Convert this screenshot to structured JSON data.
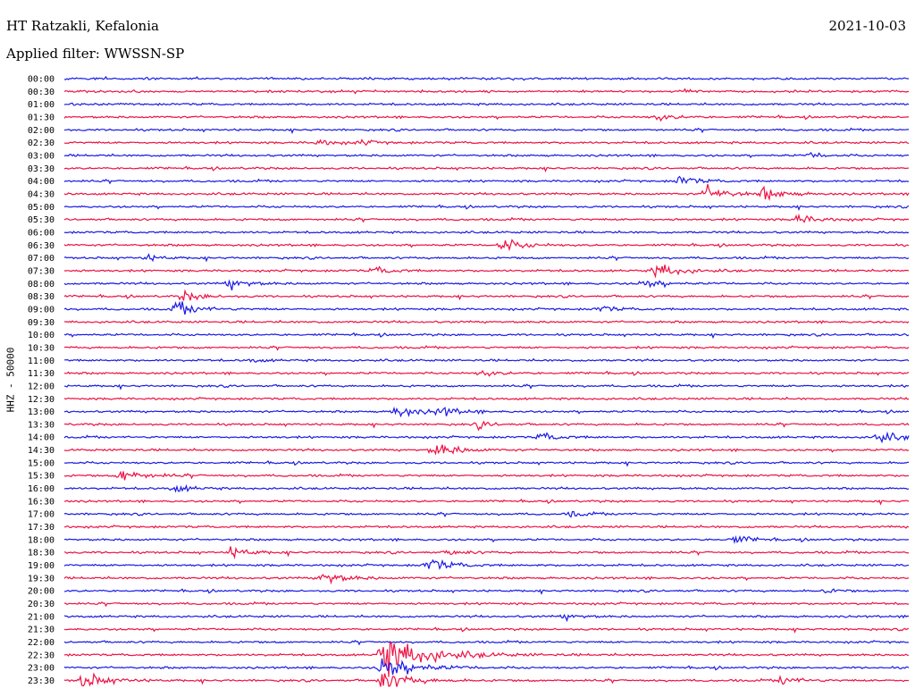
{
  "header": {
    "station": "HT Ratzakli, Kefalonia",
    "date": "2021-10-03",
    "filter": "Applied filter: WWSSN-SP"
  },
  "chart_data": {
    "type": "line",
    "ylabel": "HHZ - 50000",
    "tick_labels": [
      "00:00",
      "00:30",
      "01:00",
      "01:30",
      "02:00",
      "02:30",
      "03:00",
      "03:30",
      "04:00",
      "04:30",
      "05:00",
      "05:30",
      "06:00",
      "06:30",
      "07:00",
      "07:30",
      "08:00",
      "08:30",
      "09:00",
      "09:30",
      "10:00",
      "10:30",
      "11:00",
      "11:30",
      "12:00",
      "12:30",
      "13:00",
      "13:30",
      "14:00",
      "14:30",
      "15:00",
      "15:30",
      "16:00",
      "16:30",
      "17:00",
      "17:30",
      "18:00",
      "18:30",
      "19:00",
      "19:30",
      "20:00",
      "20:30",
      "21:00",
      "21:30",
      "22:00",
      "22:30",
      "23:00",
      "23:30"
    ],
    "trace_colors": [
      "#1a1ae6",
      "#ee1144"
    ],
    "x_range_minutes": [
      0,
      30
    ],
    "grid": false,
    "events": [
      {
        "row": 1,
        "minute": 22.0,
        "amp": 0.35
      },
      {
        "row": 3,
        "minute": 21.0,
        "amp": 0.8
      },
      {
        "row": 5,
        "minute": 9.0,
        "amp": 0.6
      },
      {
        "row": 5,
        "minute": 10.5,
        "amp": 0.5
      },
      {
        "row": 6,
        "minute": 26.5,
        "amp": 0.5
      },
      {
        "row": 8,
        "minute": 21.8,
        "amp": 0.9
      },
      {
        "row": 9,
        "minute": 22.8,
        "amp": 1.4
      },
      {
        "row": 9,
        "minute": 24.8,
        "amp": 1.2
      },
      {
        "row": 11,
        "minute": 26.0,
        "amp": 1.0
      },
      {
        "row": 13,
        "minute": 15.5,
        "amp": 1.3
      },
      {
        "row": 14,
        "minute": 2.9,
        "amp": 0.6
      },
      {
        "row": 15,
        "minute": 11.0,
        "amp": 0.7
      },
      {
        "row": 15,
        "minute": 21.0,
        "amp": 1.5
      },
      {
        "row": 16,
        "minute": 5.8,
        "amp": 1.1
      },
      {
        "row": 16,
        "minute": 20.5,
        "amp": 1.0
      },
      {
        "row": 17,
        "minute": 4.2,
        "amp": 1.0
      },
      {
        "row": 18,
        "minute": 3.9,
        "amp": 1.4
      },
      {
        "row": 18,
        "minute": 19.0,
        "amp": 0.6
      },
      {
        "row": 22,
        "minute": 6.6,
        "amp": 0.35
      },
      {
        "row": 23,
        "minute": 14.8,
        "amp": 0.7
      },
      {
        "row": 26,
        "minute": 11.7,
        "amp": 1.2
      },
      {
        "row": 26,
        "minute": 13.3,
        "amp": 1.0
      },
      {
        "row": 27,
        "minute": 14.7,
        "amp": 0.6
      },
      {
        "row": 28,
        "minute": 16.9,
        "amp": 0.8
      },
      {
        "row": 28,
        "minute": 28.8,
        "amp": 1.2
      },
      {
        "row": 29,
        "minute": 13.1,
        "amp": 1.5
      },
      {
        "row": 31,
        "minute": 2.0,
        "amp": 1.4
      },
      {
        "row": 32,
        "minute": 3.9,
        "amp": 0.7
      },
      {
        "row": 34,
        "minute": 18.0,
        "amp": 0.5
      },
      {
        "row": 36,
        "minute": 23.7,
        "amp": 0.9
      },
      {
        "row": 37,
        "minute": 5.9,
        "amp": 1.0
      },
      {
        "row": 37,
        "minute": 13.7,
        "amp": 0.6
      },
      {
        "row": 38,
        "minute": 12.9,
        "amp": 1.3
      },
      {
        "row": 39,
        "minute": 9.1,
        "amp": 1.4
      },
      {
        "row": 40,
        "minute": 27.0,
        "amp": 0.5
      },
      {
        "row": 42,
        "minute": 17.7,
        "amp": 0.6
      },
      {
        "row": 45,
        "minute": 11.2,
        "amp": 4.0
      },
      {
        "row": 46,
        "minute": 11.2,
        "amp": 2.5
      },
      {
        "row": 47,
        "minute": 11.2,
        "amp": 2.0
      },
      {
        "row": 47,
        "minute": 0.6,
        "amp": 1.6
      },
      {
        "row": 47,
        "minute": 25.4,
        "amp": 0.9
      }
    ]
  }
}
